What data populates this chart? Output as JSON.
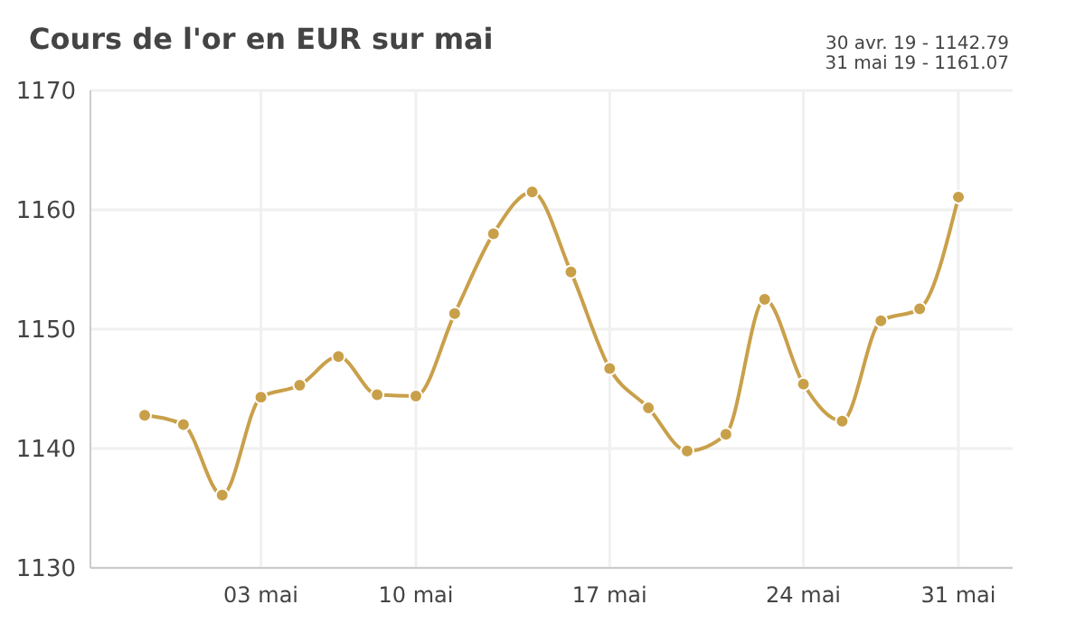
{
  "chart_data": {
    "type": "line",
    "title": "Cours de l'or en EUR sur mai",
    "annotations": [
      "30 avr. 19 - 1142.79",
      "31 mai 19 - 1161.07"
    ],
    "categories": [
      null,
      null,
      null,
      "03 mai",
      null,
      null,
      null,
      "10 mai",
      null,
      null,
      null,
      null,
      "17 mai",
      null,
      null,
      null,
      null,
      "24 mai",
      null,
      null,
      null,
      "31 mai"
    ],
    "series": [
      {
        "color": "#c9a04a",
        "values": [
          1142.79,
          1142.0,
          1136.1,
          1144.3,
          1145.3,
          1147.7,
          1144.5,
          1144.4,
          1151.3,
          1158.0,
          1161.5,
          1154.8,
          1146.7,
          1143.4,
          1139.8,
          1141.2,
          1152.5,
          1145.4,
          1142.3,
          1150.7,
          1151.7,
          1161.07
        ]
      }
    ],
    "ylim": [
      1130,
      1170
    ],
    "yticks": [
      1130,
      1140,
      1150,
      1160,
      1170
    ],
    "grid": true,
    "marker": "circle",
    "line_style": "solid"
  }
}
